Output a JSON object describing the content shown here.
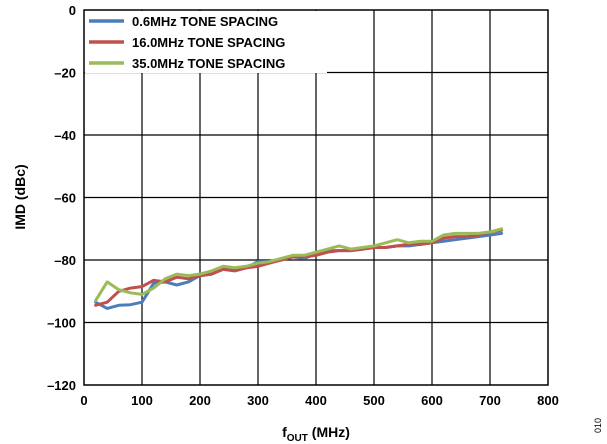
{
  "chart_data": {
    "type": "line",
    "xlabel": {
      "main": "f",
      "sub": "OUT",
      "rest": " (MHz)"
    },
    "ylabel": "IMD (dBc)",
    "xlim": [
      0,
      800
    ],
    "ylim": [
      -120,
      0
    ],
    "xticks": [
      0,
      100,
      200,
      300,
      400,
      500,
      600,
      700,
      800
    ],
    "yticks": [
      0,
      -20,
      -40,
      -60,
      -80,
      -100,
      -120
    ],
    "xtick_labels": [
      "0",
      "100",
      "200",
      "300",
      "400",
      "500",
      "600",
      "700",
      "800"
    ],
    "ytick_labels": [
      "0",
      "–20",
      "–40",
      "–60",
      "–80",
      "–100",
      "–120"
    ],
    "grid": true,
    "legend_position": "top-left",
    "corner_label": "010",
    "series": [
      {
        "name": "0.6MHz TONE SPACING",
        "color": "#4a7ebb",
        "points": [
          [
            20,
            -93.5
          ],
          [
            40,
            -95.5
          ],
          [
            60,
            -94.5
          ],
          [
            80,
            -94.3
          ],
          [
            100,
            -93.5
          ],
          [
            120,
            -87.5
          ],
          [
            140,
            -87
          ],
          [
            160,
            -88
          ],
          [
            180,
            -87
          ],
          [
            200,
            -85
          ],
          [
            220,
            -84.5
          ],
          [
            240,
            -82.5
          ],
          [
            260,
            -83
          ],
          [
            280,
            -82.5
          ],
          [
            300,
            -80.5
          ],
          [
            320,
            -80.5
          ],
          [
            340,
            -80
          ],
          [
            360,
            -79
          ],
          [
            380,
            -79.5
          ],
          [
            400,
            -78
          ],
          [
            420,
            -77
          ],
          [
            440,
            -77
          ],
          [
            460,
            -77
          ],
          [
            480,
            -76.5
          ],
          [
            500,
            -76
          ],
          [
            520,
            -76
          ],
          [
            540,
            -75.5
          ],
          [
            560,
            -75.5
          ],
          [
            580,
            -75
          ],
          [
            600,
            -74.5
          ],
          [
            620,
            -74
          ],
          [
            640,
            -73.5
          ],
          [
            660,
            -73
          ],
          [
            680,
            -72.5
          ],
          [
            700,
            -72
          ],
          [
            720,
            -71.5
          ]
        ]
      },
      {
        "name": "16.0MHz TONE SPACING",
        "color": "#c0504d",
        "points": [
          [
            20,
            -94.5
          ],
          [
            40,
            -93.5
          ],
          [
            60,
            -90
          ],
          [
            80,
            -89
          ],
          [
            100,
            -88.5
          ],
          [
            120,
            -86.5
          ],
          [
            140,
            -87
          ],
          [
            160,
            -85.5
          ],
          [
            180,
            -86
          ],
          [
            200,
            -85
          ],
          [
            220,
            -84.5
          ],
          [
            240,
            -83
          ],
          [
            260,
            -83.5
          ],
          [
            280,
            -82.5
          ],
          [
            300,
            -82
          ],
          [
            320,
            -81
          ],
          [
            340,
            -80
          ],
          [
            360,
            -79
          ],
          [
            380,
            -79
          ],
          [
            400,
            -78.5
          ],
          [
            420,
            -77.5
          ],
          [
            440,
            -77
          ],
          [
            460,
            -77
          ],
          [
            480,
            -76.5
          ],
          [
            500,
            -76
          ],
          [
            520,
            -76
          ],
          [
            540,
            -75.5
          ],
          [
            560,
            -75
          ],
          [
            580,
            -75
          ],
          [
            600,
            -74.5
          ],
          [
            620,
            -73
          ],
          [
            640,
            -72.5
          ],
          [
            660,
            -72.5
          ],
          [
            680,
            -72
          ],
          [
            700,
            -71
          ],
          [
            720,
            -70.5
          ]
        ]
      },
      {
        "name": "35.0MHz TONE SPACING",
        "color": "#9bbb59",
        "points": [
          [
            20,
            -93
          ],
          [
            40,
            -87
          ],
          [
            60,
            -89.5
          ],
          [
            80,
            -90.5
          ],
          [
            100,
            -91
          ],
          [
            120,
            -89
          ],
          [
            140,
            -86
          ],
          [
            160,
            -84.5
          ],
          [
            180,
            -85
          ],
          [
            200,
            -84.5
          ],
          [
            220,
            -83.5
          ],
          [
            240,
            -82
          ],
          [
            260,
            -82.5
          ],
          [
            280,
            -82
          ],
          [
            300,
            -81
          ],
          [
            320,
            -80.5
          ],
          [
            340,
            -79.5
          ],
          [
            360,
            -78.5
          ],
          [
            380,
            -78.5
          ],
          [
            400,
            -77.5
          ],
          [
            420,
            -76.5
          ],
          [
            440,
            -75.5
          ],
          [
            460,
            -76.5
          ],
          [
            480,
            -76
          ],
          [
            500,
            -75.5
          ],
          [
            520,
            -74.5
          ],
          [
            540,
            -73.5
          ],
          [
            560,
            -74.5
          ],
          [
            580,
            -74
          ],
          [
            600,
            -74
          ],
          [
            620,
            -72
          ],
          [
            640,
            -71.5
          ],
          [
            660,
            -71.5
          ],
          [
            680,
            -71.5
          ],
          [
            700,
            -71
          ],
          [
            720,
            -70
          ]
        ]
      }
    ]
  }
}
